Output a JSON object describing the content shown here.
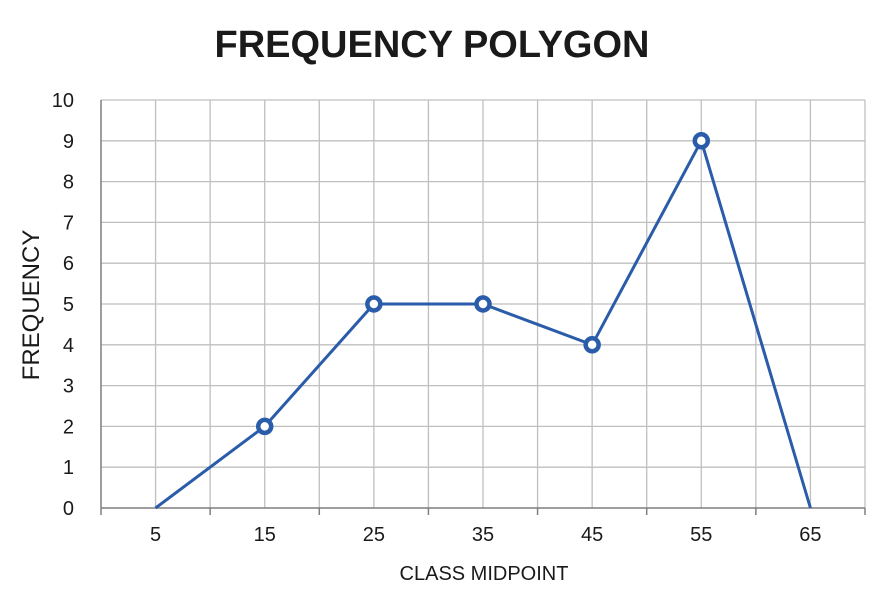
{
  "chart_data": {
    "type": "line",
    "title": "FREQUENCY POLYGON",
    "xlabel": "CLASS MIDPOINT",
    "ylabel": "FREQUENCY",
    "categories": [
      "5",
      "15",
      "25",
      "35",
      "45",
      "55",
      "65"
    ],
    "x": [
      5,
      15,
      25,
      35,
      45,
      55,
      65
    ],
    "series": [
      {
        "values": [
          0,
          2,
          5,
          5,
          4,
          9,
          0
        ],
        "marker_indices": [
          1,
          2,
          3,
          4,
          5
        ]
      }
    ],
    "ylim": [
      0,
      10
    ],
    "yticks": [
      0,
      1,
      2,
      3,
      4,
      5,
      6,
      7,
      8,
      9,
      10
    ],
    "grid": true,
    "legend": "none",
    "colors": {
      "line": "#2a5caa",
      "grid": "#bfbfbf",
      "axis": "#7f7f7f",
      "text": "#1a1a1a"
    }
  }
}
